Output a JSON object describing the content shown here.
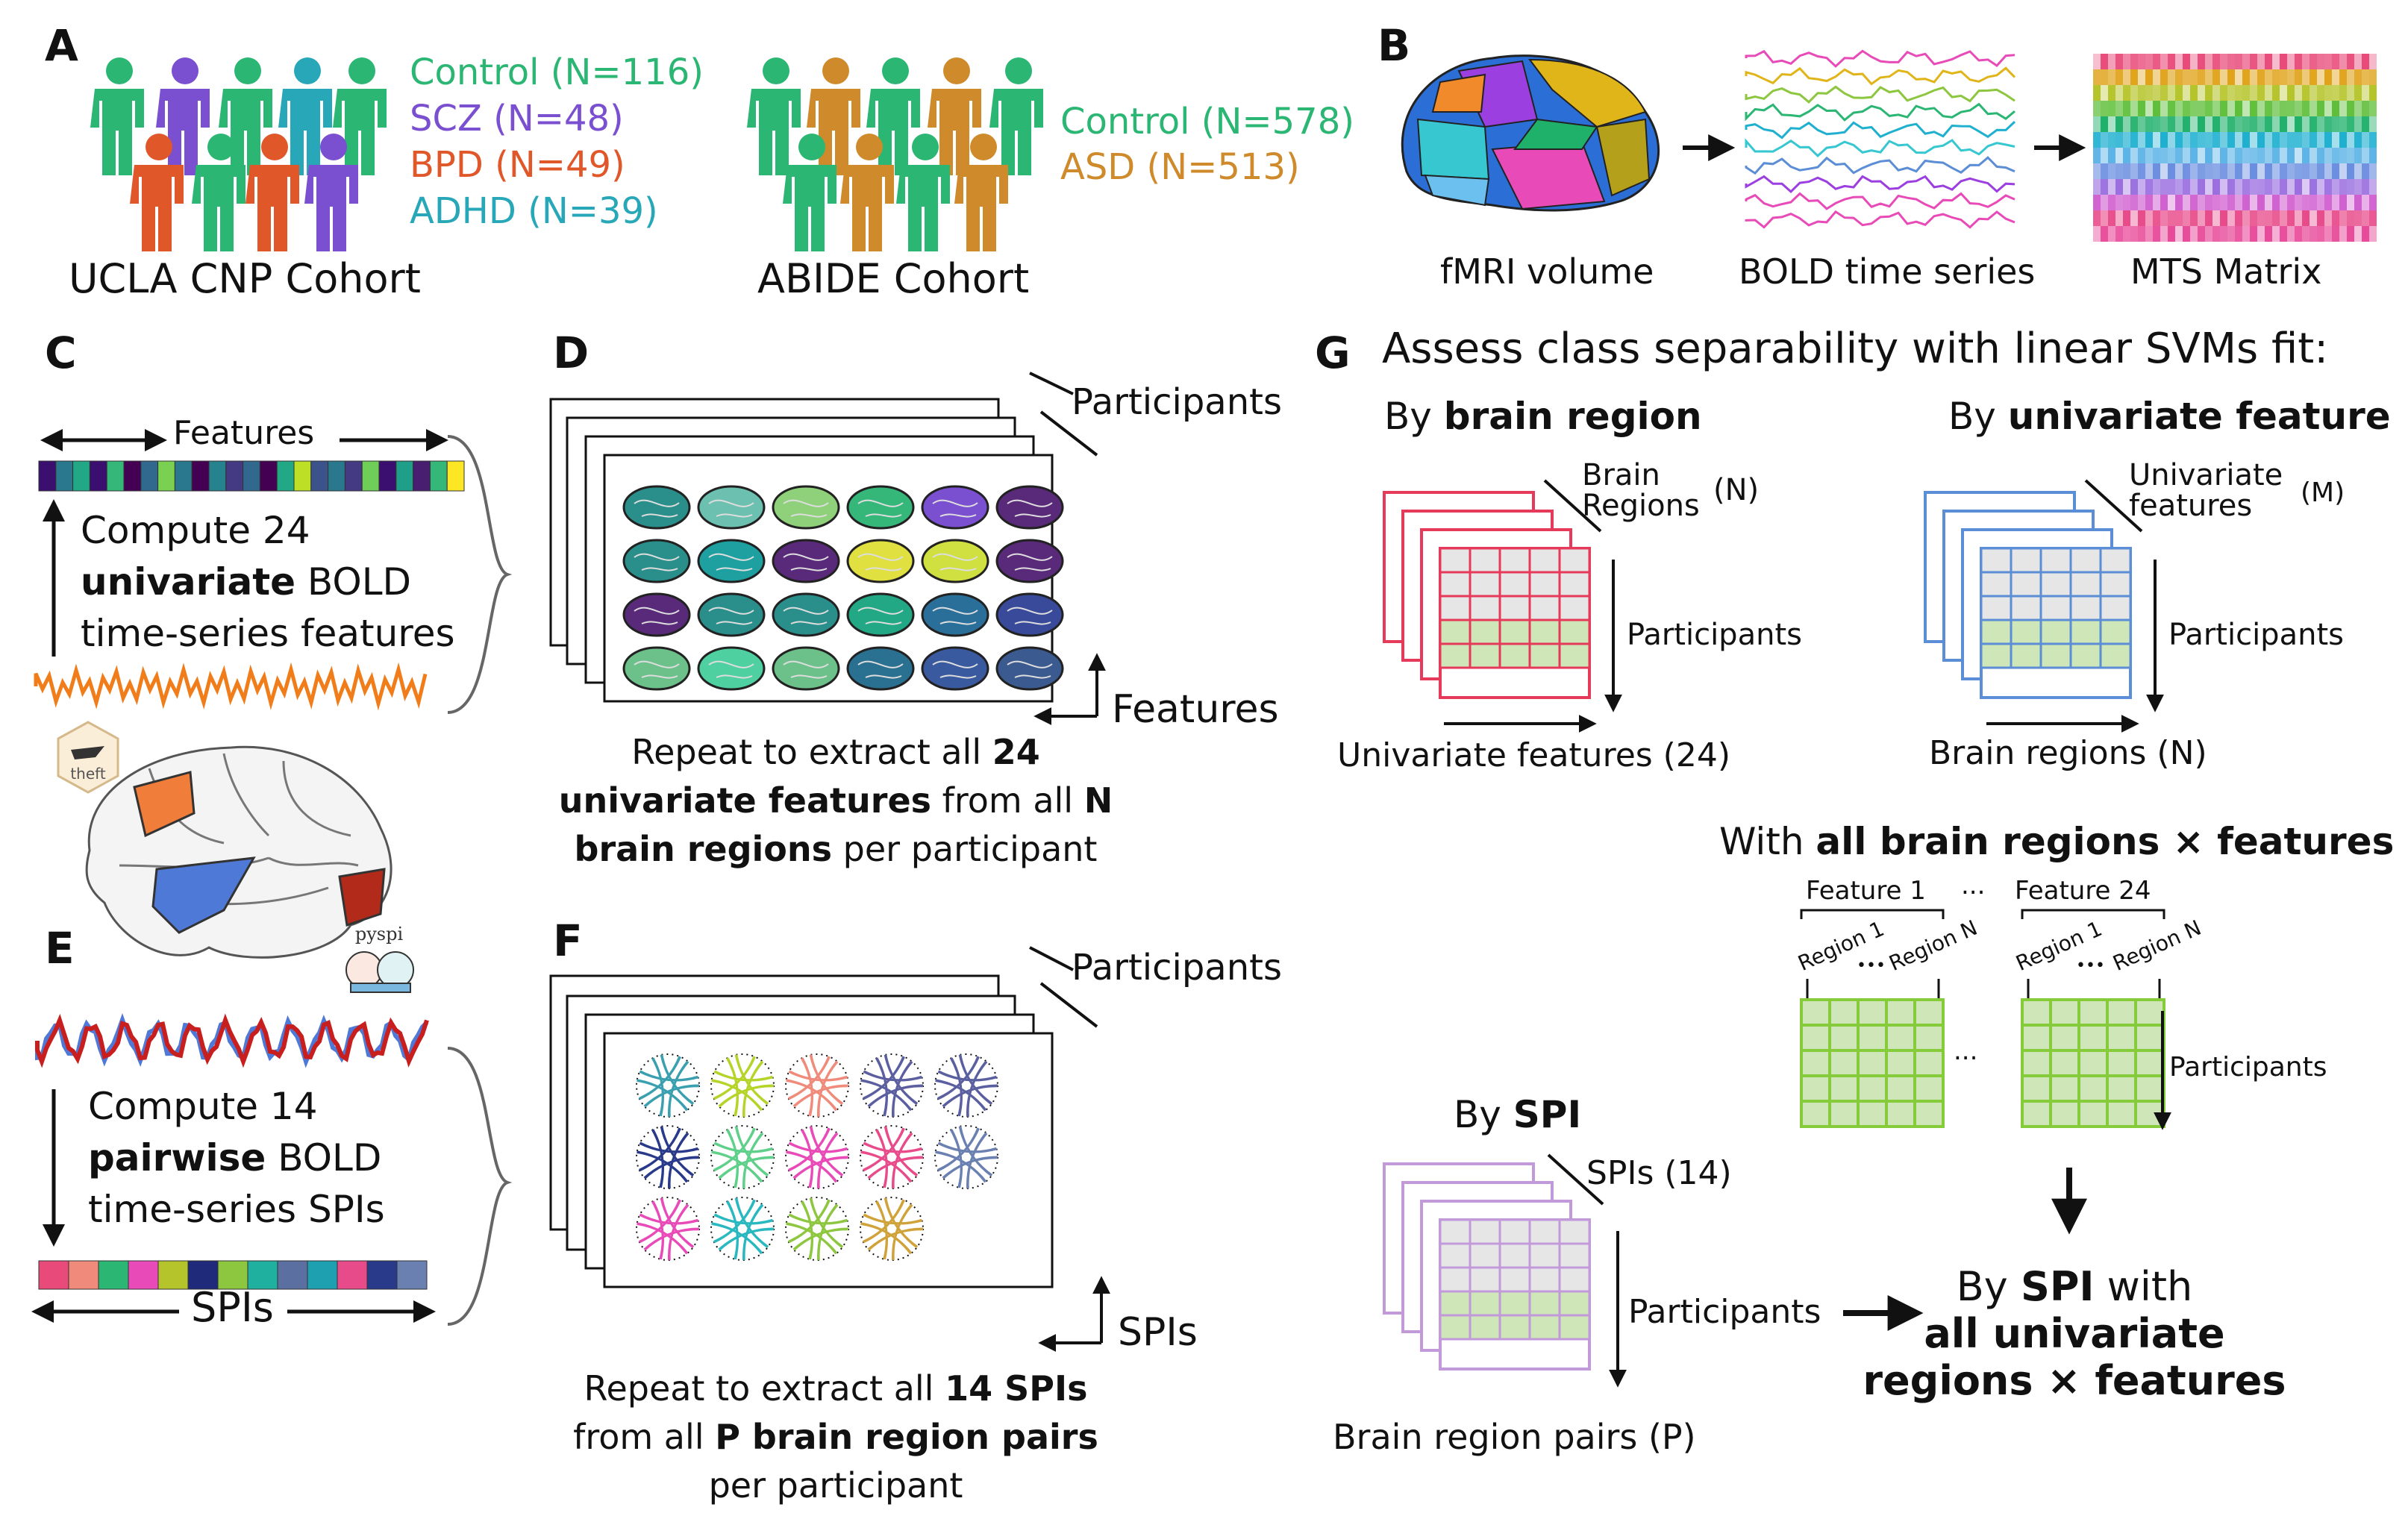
{
  "panels": {
    "A": {
      "letter": "A",
      "ucla": {
        "title": "UCLA CNP Cohort",
        "groups": [
          {
            "label": "Control (N=116)",
            "color": "#2bb673"
          },
          {
            "label": "SCZ (N=48)",
            "color": "#7a4fd0"
          },
          {
            "label": "BPD (N=49)",
            "color": "#e0572a"
          },
          {
            "label": "ADHD (N=39)",
            "color": "#27a7b7"
          }
        ]
      },
      "abide": {
        "title": "ABIDE Cohort",
        "groups": [
          {
            "label": "Control (N=578)",
            "color": "#2bb673"
          },
          {
            "label": "ASD (N=513)",
            "color": "#cf8b2b"
          }
        ]
      }
    },
    "B": {
      "letter": "B",
      "labels": [
        "fMRI volume",
        "BOLD time series",
        "MTS Matrix"
      ]
    },
    "C": {
      "letter": "C",
      "features_label": "Features",
      "compute_line1": "Compute 24",
      "compute_bold": "univariate",
      "compute_rest": " BOLD",
      "compute_line3": "time-series features",
      "theft_logo_text": "theft"
    },
    "D": {
      "letter": "D",
      "participants": "Participants",
      "features": "Features",
      "caption_pre1": "Repeat to extract all ",
      "caption_bold1": "24",
      "caption_bold2": "univariate features",
      "caption_mid2": " from all ",
      "caption_bold2b": "N",
      "caption_bold3": "brain regions",
      "caption_post3": " per participant"
    },
    "E": {
      "letter": "E",
      "compute_line1": "Compute 14",
      "compute_bold": "pairwise",
      "compute_rest": " BOLD",
      "compute_line3": "time-series SPIs",
      "spis_label": "SPIs",
      "pyspi_logo_text": "pyspi"
    },
    "F": {
      "letter": "F",
      "participants": "Participants",
      "spis": "SPIs",
      "caption_pre1": "Repeat to extract all ",
      "caption_bold1": "14 SPIs",
      "caption_pre2": "from all ",
      "caption_bold2": "P brain region pairs",
      "caption_line3": "per participant"
    },
    "G": {
      "letter": "G",
      "title": "Assess class separability with linear SVMs fit:",
      "by": "By ",
      "region": {
        "heading_bold": "brain region",
        "depth_label1": "Brain",
        "depth_label2": "Regions",
        "depth_count": "(N)",
        "rows": "Participants",
        "cols": "Univariate features (24)"
      },
      "feature": {
        "heading_bold": "univariate feature",
        "depth_label1": "Univariate",
        "depth_label2": "features",
        "depth_count": "(M)",
        "rows": "Participants",
        "cols": "Brain regions (N)"
      },
      "combined": {
        "heading_pre": "With ",
        "heading_bold": "all brain regions × features",
        "feature1": "Feature 1",
        "feature24": "Feature 24",
        "ellipsis": "...",
        "region1": "Region 1",
        "regionN": "Region N",
        "dots": "•••",
        "rows": "Participants"
      },
      "spi": {
        "heading_bold": "SPI",
        "depth_label": "SPIs (14)",
        "rows": "Participants",
        "cols": "Brain region pairs (P)",
        "result_pre": "By ",
        "result_bold1": "SPI",
        "result_mid": " with",
        "result_bold2": "all univariate",
        "result_bold3": "regions × features"
      }
    }
  },
  "colors": {
    "red_grid": "#e63a5a",
    "blue_grid": "#5b8ed6",
    "green_grid": "#86cc3a",
    "purple_grid": "#c29ad9",
    "cell_gray": "#e6e6e6",
    "cell_green": "#cfe6b8",
    "orange_series": "#f07d1a",
    "blue_series": "#4f79d6",
    "red_series": "#c81e1e"
  },
  "icons": [
    "person-icon",
    "brain-icon",
    "theft-logo-icon",
    "pyspi-logo-icon",
    "arrow-icon",
    "bracket-icon"
  ]
}
